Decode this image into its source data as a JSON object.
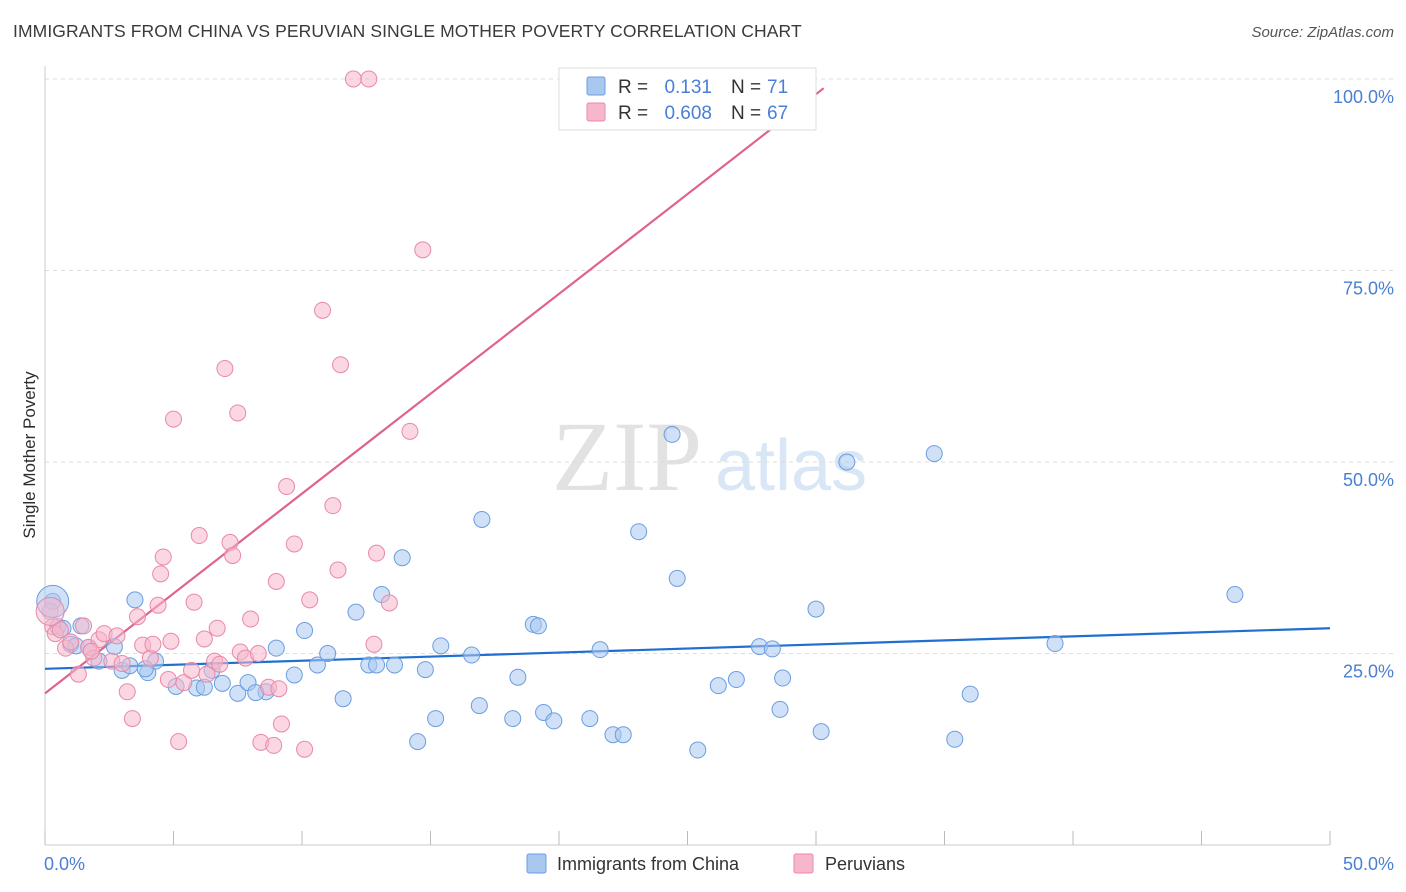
{
  "title": "IMMIGRANTS FROM CHINA VS PERUVIAN SINGLE MOTHER POVERTY CORRELATION CHART",
  "source": "Source: ZipAtlas.com",
  "watermark": {
    "zip": "ZIP",
    "atlas": "atlas"
  },
  "legend_top": {
    "rows": [
      {
        "r_label": "R = ",
        "r_value": "0.131",
        "n_label": "N = ",
        "n_value": "71",
        "color": "#a9c8f0"
      },
      {
        "r_label": "R = ",
        "r_value": "0.608",
        "n_label": "N = ",
        "n_value": "67",
        "color": "#f6b7cb"
      }
    ]
  },
  "chart_data": {
    "type": "scatter",
    "ylabel": "Single Mother Poverty",
    "xlim": [
      0,
      50
    ],
    "ylim": [
      0,
      100
    ],
    "x_ticks": [
      "0.0%",
      "50.0%"
    ],
    "y_ticks": [
      {
        "value": 25,
        "label": "25.0%"
      },
      {
        "value": 50,
        "label": "50.0%"
      },
      {
        "value": 75,
        "label": "75.0%"
      },
      {
        "value": 100,
        "label": "100.0%"
      }
    ],
    "grid": true,
    "series": [
      {
        "name": "Immigrants from China",
        "color": "#a9c8f0",
        "stroke": "#6b9de0",
        "trend_color": "#1f6fd0",
        "trend": {
          "x": [
            0,
            50
          ],
          "y": [
            23.0,
            28.3
          ]
        },
        "points": [
          [
            0.3,
            31.8
          ],
          [
            0.5,
            28.5
          ],
          [
            1.0,
            26.2
          ],
          [
            1.4,
            28.6
          ],
          [
            2.1,
            24.0
          ],
          [
            2.7,
            25.9
          ],
          [
            3.0,
            22.8
          ],
          [
            3.3,
            23.4
          ],
          [
            3.5,
            32.0
          ],
          [
            4.0,
            22.5
          ],
          [
            4.3,
            24.0
          ],
          [
            5.1,
            20.7
          ],
          [
            5.9,
            20.5
          ],
          [
            6.5,
            22.8
          ],
          [
            6.9,
            21.1
          ],
          [
            7.5,
            19.8
          ],
          [
            7.9,
            21.2
          ],
          [
            8.6,
            20.0
          ],
          [
            9.0,
            25.7
          ],
          [
            9.7,
            22.2
          ],
          [
            10.1,
            28.0
          ],
          [
            10.6,
            23.5
          ],
          [
            11.0,
            25.0
          ],
          [
            11.6,
            19.1
          ],
          [
            12.1,
            30.4
          ],
          [
            12.6,
            23.5
          ],
          [
            12.9,
            23.5
          ],
          [
            13.1,
            32.7
          ],
          [
            13.6,
            23.5
          ],
          [
            13.9,
            37.5
          ],
          [
            14.5,
            13.5
          ],
          [
            14.8,
            22.9
          ],
          [
            15.2,
            16.5
          ],
          [
            15.4,
            26.0
          ],
          [
            16.6,
            24.8
          ],
          [
            16.9,
            18.2
          ],
          [
            17.0,
            42.5
          ],
          [
            18.2,
            16.5
          ],
          [
            18.4,
            21.9
          ],
          [
            19.0,
            28.8
          ],
          [
            19.2,
            28.6
          ],
          [
            19.4,
            17.3
          ],
          [
            19.8,
            16.2
          ],
          [
            21.2,
            16.5
          ],
          [
            21.6,
            25.5
          ],
          [
            22.1,
            14.4
          ],
          [
            22.5,
            14.4
          ],
          [
            23.1,
            40.9
          ],
          [
            24.4,
            53.6
          ],
          [
            24.6,
            34.8
          ],
          [
            25.4,
            12.4
          ],
          [
            26.2,
            20.8
          ],
          [
            26.9,
            21.6
          ],
          [
            27.8,
            25.9
          ],
          [
            28.3,
            25.6
          ],
          [
            28.6,
            17.7
          ],
          [
            28.7,
            21.8
          ],
          [
            30.0,
            30.8
          ],
          [
            30.2,
            14.8
          ],
          [
            31.2,
            50.0
          ],
          [
            34.6,
            51.1
          ],
          [
            35.4,
            13.8
          ],
          [
            36.0,
            19.7
          ],
          [
            39.3,
            26.3
          ],
          [
            46.3,
            32.7
          ],
          [
            0.7,
            28.3
          ],
          [
            1.2,
            26.0
          ],
          [
            1.7,
            25.8
          ],
          [
            3.9,
            23.0
          ],
          [
            8.2,
            19.9
          ],
          [
            6.2,
            20.6
          ]
        ]
      },
      {
        "name": "Peruvians",
        "color": "#f6b7cb",
        "stroke": "#e889a8",
        "trend_color": "#e0628e",
        "trend": {
          "x": [
            0,
            30.3
          ],
          "y": [
            19.8,
            98.8
          ]
        },
        "points": [
          [
            0.2,
            30.5
          ],
          [
            0.3,
            28.5
          ],
          [
            0.4,
            27.6
          ],
          [
            0.8,
            25.7
          ],
          [
            1.0,
            26.5
          ],
          [
            1.3,
            22.3
          ],
          [
            1.7,
            25.8
          ],
          [
            1.9,
            24.4
          ],
          [
            2.1,
            26.8
          ],
          [
            2.3,
            27.6
          ],
          [
            2.6,
            24.0
          ],
          [
            3.0,
            23.7
          ],
          [
            3.2,
            20.0
          ],
          [
            3.4,
            16.5
          ],
          [
            3.6,
            29.8
          ],
          [
            3.8,
            26.1
          ],
          [
            4.1,
            24.4
          ],
          [
            4.4,
            31.3
          ],
          [
            4.5,
            35.4
          ],
          [
            4.6,
            37.6
          ],
          [
            4.9,
            26.6
          ],
          [
            5.0,
            55.6
          ],
          [
            5.2,
            13.5
          ],
          [
            5.4,
            21.2
          ],
          [
            5.8,
            31.7
          ],
          [
            6.0,
            40.4
          ],
          [
            6.2,
            26.9
          ],
          [
            6.3,
            22.3
          ],
          [
            6.6,
            24.0
          ],
          [
            6.7,
            28.3
          ],
          [
            7.0,
            62.2
          ],
          [
            7.2,
            39.5
          ],
          [
            7.3,
            37.8
          ],
          [
            7.5,
            56.4
          ],
          [
            7.6,
            25.2
          ],
          [
            7.8,
            24.4
          ],
          [
            8.0,
            29.5
          ],
          [
            8.4,
            13.4
          ],
          [
            8.7,
            20.6
          ],
          [
            8.9,
            13.0
          ],
          [
            9.0,
            34.4
          ],
          [
            9.2,
            15.8
          ],
          [
            9.4,
            46.8
          ],
          [
            9.7,
            39.3
          ],
          [
            10.1,
            12.5
          ],
          [
            10.8,
            69.8
          ],
          [
            11.2,
            44.3
          ],
          [
            11.4,
            35.9
          ],
          [
            11.5,
            62.7
          ],
          [
            12.0,
            100.0
          ],
          [
            12.6,
            100.0
          ],
          [
            12.8,
            26.2
          ],
          [
            12.9,
            38.1
          ],
          [
            13.4,
            31.6
          ],
          [
            14.2,
            54.0
          ],
          [
            14.7,
            77.7
          ],
          [
            1.5,
            28.6
          ],
          [
            2.8,
            27.3
          ],
          [
            4.8,
            21.6
          ],
          [
            5.7,
            22.8
          ],
          [
            9.1,
            20.4
          ],
          [
            10.3,
            32.0
          ],
          [
            0.6,
            28.1
          ],
          [
            1.8,
            25.3
          ],
          [
            6.8,
            23.6
          ],
          [
            8.3,
            25.0
          ],
          [
            4.2,
            26.2
          ]
        ]
      }
    ]
  },
  "bottom_legend": [
    {
      "label": "Immigrants from China",
      "color": "#a9c8f0"
    },
    {
      "label": "Peruvians",
      "color": "#f6b7cb"
    }
  ]
}
